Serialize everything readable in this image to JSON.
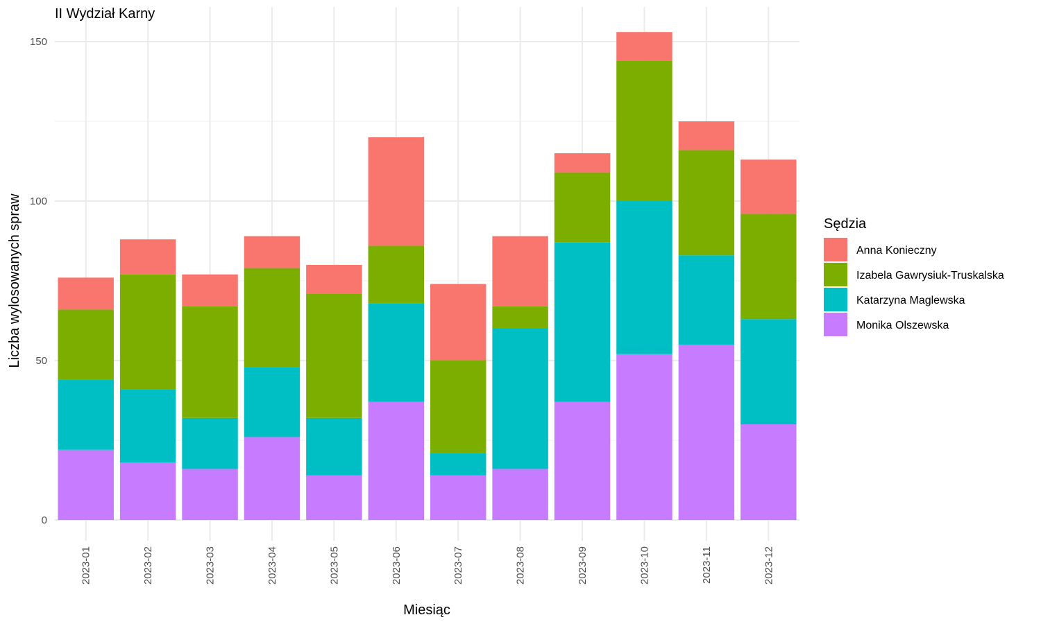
{
  "chart_data": {
    "type": "bar",
    "stacked": true,
    "title": "II Wydział Karny",
    "xlabel": "Miesiąc",
    "ylabel": "Liczba wylosowanych spraw",
    "ylim": [
      0,
      155
    ],
    "yticks": [
      0,
      50,
      100,
      150
    ],
    "grid": true,
    "legend": {
      "title": "Sędzia",
      "position": "right"
    },
    "categories": [
      "2023-01",
      "2023-02",
      "2023-03",
      "2023-04",
      "2023-05",
      "2023-06",
      "2023-07",
      "2023-08",
      "2023-09",
      "2023-10",
      "2023-11",
      "2023-12"
    ],
    "series": [
      {
        "name": "Anna Konieczny",
        "color": "#F8766D",
        "values": [
          10,
          11,
          10,
          10,
          9,
          34,
          24,
          22,
          6,
          9,
          9,
          17
        ]
      },
      {
        "name": "Izabela Gawrysiuk-Truskalska",
        "color": "#7CAE00",
        "values": [
          22,
          36,
          35,
          31,
          39,
          18,
          29,
          7,
          22,
          44,
          33,
          33
        ]
      },
      {
        "name": "Katarzyna Maglewska",
        "color": "#00BFC4",
        "values": [
          22,
          23,
          16,
          22,
          18,
          31,
          7,
          44,
          50,
          48,
          28,
          33
        ]
      },
      {
        "name": "Monika Olszewska",
        "color": "#C77CFF",
        "values": [
          22,
          18,
          16,
          26,
          14,
          37,
          14,
          16,
          37,
          52,
          55,
          30
        ]
      }
    ]
  }
}
